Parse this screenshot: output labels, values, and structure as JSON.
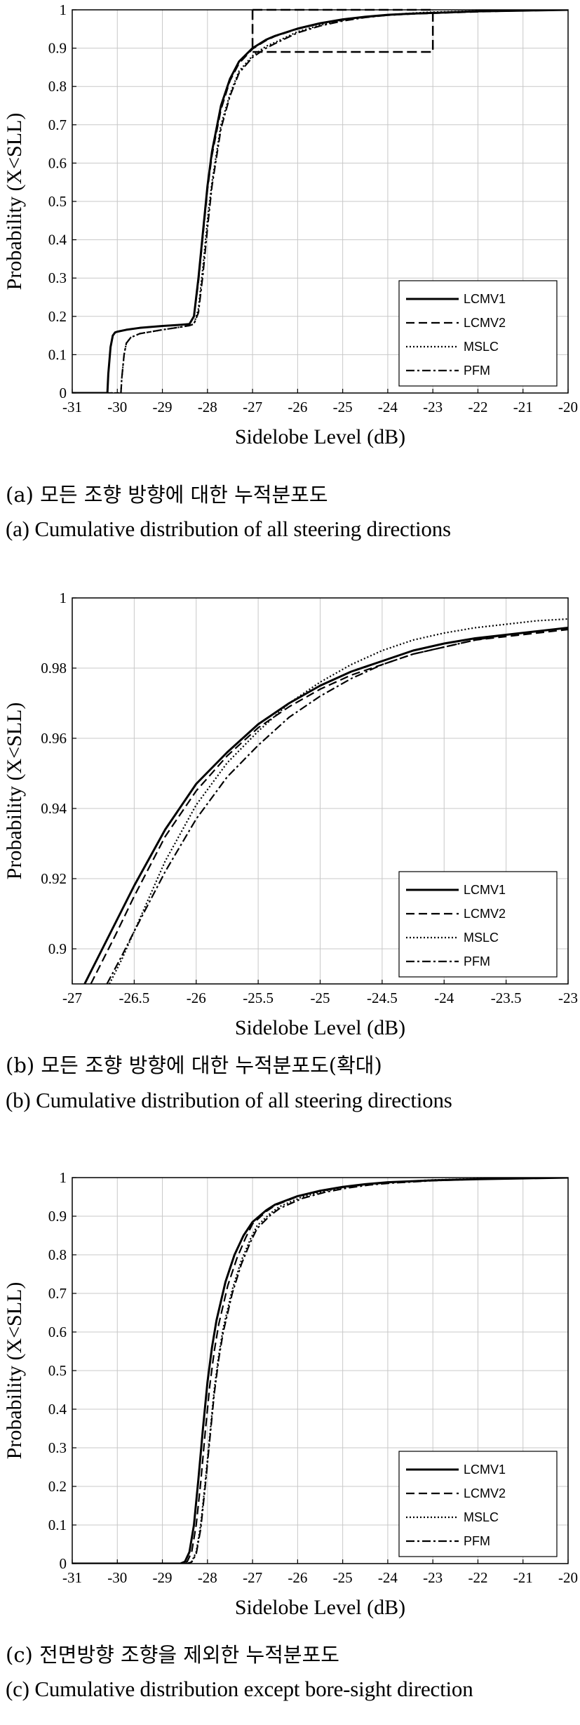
{
  "styles": {
    "LCMV1": {
      "dash": "",
      "width": 3
    },
    "LCMV2": {
      "dash": "12,6",
      "width": 2.2
    },
    "MSLC": {
      "dash": "2,3",
      "width": 2.2
    },
    "PFM": {
      "dash": "12,4,3,4",
      "width": 2.2
    }
  },
  "panels": [
    {
      "id": "a",
      "caption_ko": "(a) 모든 조향 방향에 대한 누적분포도",
      "caption_en": "(a) Cumulative distribution of all steering directions",
      "chart_data": {
        "type": "line",
        "xlabel": "Sidelobe Level (dB)",
        "ylabel": "Probability (X<SLL)",
        "xlim": [
          -31,
          -20
        ],
        "ylim": [
          0,
          1
        ],
        "xticks": [
          -31,
          -30,
          -29,
          -28,
          -27,
          -26,
          -25,
          -24,
          -23,
          -22,
          -21,
          -20
        ],
        "yticks": [
          0,
          0.1,
          0.2,
          0.3,
          0.4,
          0.5,
          0.6,
          0.7,
          0.8,
          0.9,
          1
        ],
        "ytick_labels": [
          "0",
          "0.1",
          "0.2",
          "0.3",
          "0.4",
          "0.5",
          "0.6",
          "0.7",
          "0.8",
          "0.9",
          "1"
        ],
        "grid": true,
        "legend_position": "bottom-right",
        "annotation_box": {
          "x": [
            -27,
            -23
          ],
          "y": [
            0.89,
            1.0
          ]
        },
        "series": [
          {
            "name": "LCMV1",
            "x": [
              -31,
              -30.22,
              -30.2,
              -30.15,
              -30.1,
              -30.05,
              -30.0,
              -29.8,
              -29.5,
              -29.0,
              -28.6,
              -28.4,
              -28.3,
              -28.2,
              -28.1,
              -28.0,
              -27.9,
              -27.7,
              -27.5,
              -27.3,
              -27.0,
              -26.7,
              -26.5,
              -26.0,
              -25.5,
              -25.0,
              -24.5,
              -24.0,
              -23.5,
              -23.0,
              -22.0,
              -21.0,
              -20.0
            ],
            "y": [
              0,
              0,
              0.05,
              0.12,
              0.15,
              0.158,
              0.16,
              0.165,
              0.17,
              0.175,
              0.178,
              0.18,
              0.2,
              0.3,
              0.42,
              0.54,
              0.63,
              0.75,
              0.82,
              0.865,
              0.9,
              0.922,
              0.932,
              0.951,
              0.965,
              0.975,
              0.982,
              0.987,
              0.99,
              0.992,
              0.996,
              0.998,
              1.0
            ]
          },
          {
            "name": "LCMV2",
            "x": [
              -31,
              -30.22,
              -30.2,
              -30.15,
              -30.1,
              -30.05,
              -30.0,
              -29.8,
              -29.5,
              -29.0,
              -28.6,
              -28.4,
              -28.3,
              -28.2,
              -28.1,
              -28.0,
              -27.9,
              -27.7,
              -27.5,
              -27.3,
              -27.0,
              -26.7,
              -26.5,
              -26.0,
              -25.5,
              -25.0,
              -24.5,
              -24.0,
              -23.5,
              -23.0,
              -22.0,
              -21.0,
              -20.0
            ],
            "y": [
              0,
              0,
              0.05,
              0.12,
              0.15,
              0.158,
              0.16,
              0.165,
              0.17,
              0.175,
              0.178,
              0.18,
              0.2,
              0.29,
              0.41,
              0.53,
              0.62,
              0.74,
              0.815,
              0.86,
              0.898,
              0.92,
              0.931,
              0.95,
              0.964,
              0.974,
              0.981,
              0.986,
              0.989,
              0.991,
              0.995,
              0.998,
              1.0
            ]
          },
          {
            "name": "MSLC",
            "x": [
              -31,
              -29.92,
              -29.9,
              -29.85,
              -29.8,
              -29.7,
              -29.6,
              -29.5,
              -29.0,
              -28.6,
              -28.4,
              -28.3,
              -28.2,
              -28.1,
              -28.0,
              -27.9,
              -27.7,
              -27.5,
              -27.3,
              -27.0,
              -26.7,
              -26.5,
              -26.0,
              -25.5,
              -25.0,
              -24.5,
              -24.0,
              -23.5,
              -23.0,
              -22.0,
              -21.0,
              -20.0
            ],
            "y": [
              0,
              0,
              0.04,
              0.1,
              0.13,
              0.145,
              0.15,
              0.155,
              0.165,
              0.172,
              0.176,
              0.18,
              0.22,
              0.33,
              0.45,
              0.55,
              0.7,
              0.78,
              0.84,
              0.88,
              0.905,
              0.915,
              0.943,
              0.96,
              0.973,
              0.981,
              0.987,
              0.991,
              0.994,
              0.997,
              0.999,
              1.0
            ]
          },
          {
            "name": "PFM",
            "x": [
              -31,
              -29.92,
              -29.9,
              -29.85,
              -29.8,
              -29.7,
              -29.6,
              -29.5,
              -29.0,
              -28.6,
              -28.4,
              -28.3,
              -28.2,
              -28.1,
              -28.0,
              -27.9,
              -27.7,
              -27.5,
              -27.3,
              -27.0,
              -26.7,
              -26.5,
              -26.0,
              -25.5,
              -25.0,
              -24.5,
              -24.0,
              -23.5,
              -23.0,
              -22.0,
              -21.0,
              -20.0
            ],
            "y": [
              0,
              0,
              0.04,
              0.1,
              0.13,
              0.145,
              0.15,
              0.155,
              0.165,
              0.172,
              0.176,
              0.18,
              0.21,
              0.31,
              0.43,
              0.54,
              0.69,
              0.775,
              0.835,
              0.876,
              0.9,
              0.912,
              0.94,
              0.958,
              0.971,
              0.98,
              0.986,
              0.99,
              0.992,
              0.996,
              0.998,
              1.0
            ]
          }
        ]
      }
    },
    {
      "id": "b",
      "caption_ko": "(b) 모든 조향 방향에 대한 누적분포도(확대)",
      "caption_en": "(b) Cumulative distribution of all steering directions",
      "chart_data": {
        "type": "line",
        "xlabel": "Sidelobe Level (dB)",
        "ylabel": "Probability (X<SLL)",
        "xlim": [
          -27,
          -23
        ],
        "ylim": [
          0.89,
          1
        ],
        "xticks": [
          -27,
          -26.5,
          -26,
          -25.5,
          -25,
          -24.5,
          -24,
          -23.5,
          -23
        ],
        "yticks": [
          0.9,
          0.92,
          0.94,
          0.96,
          0.98,
          1
        ],
        "ytick_labels": [
          "0.9",
          "0.92",
          "0.94",
          "0.96",
          "0.98",
          "1"
        ],
        "grid": true,
        "legend_position": "bottom-right",
        "series": [
          {
            "name": "LCMV1",
            "x": [
              -26.9,
              -26.8,
              -26.7,
              -26.6,
              -26.5,
              -26.25,
              -26.0,
              -25.75,
              -25.5,
              -25.25,
              -25.0,
              -24.75,
              -24.5,
              -24.25,
              -24.0,
              -23.75,
              -23.5,
              -23.25,
              -23.0
            ],
            "y": [
              0.89,
              0.897,
              0.904,
              0.911,
              0.918,
              0.934,
              0.947,
              0.956,
              0.964,
              0.97,
              0.975,
              0.979,
              0.982,
              0.985,
              0.987,
              0.9885,
              0.9895,
              0.9905,
              0.9915
            ]
          },
          {
            "name": "LCMV2",
            "x": [
              -26.85,
              -26.75,
              -26.65,
              -26.5,
              -26.25,
              -26.0,
              -25.75,
              -25.5,
              -25.25,
              -25.0,
              -24.75,
              -24.5,
              -24.25,
              -24.0,
              -23.75,
              -23.5,
              -23.25,
              -23.0
            ],
            "y": [
              0.89,
              0.897,
              0.904,
              0.915,
              0.932,
              0.945,
              0.955,
              0.963,
              0.969,
              0.974,
              0.978,
              0.981,
              0.984,
              0.986,
              0.988,
              0.989,
              0.99,
              0.991
            ]
          },
          {
            "name": "MSLC",
            "x": [
              -26.7,
              -26.6,
              -26.5,
              -26.25,
              -26.0,
              -25.75,
              -25.5,
              -25.25,
              -25.0,
              -24.75,
              -24.5,
              -24.25,
              -24.0,
              -23.75,
              -23.5,
              -23.25,
              -23.0
            ],
            "y": [
              0.89,
              0.897,
              0.905,
              0.925,
              0.941,
              0.953,
              0.962,
              0.97,
              0.976,
              0.981,
              0.985,
              0.988,
              0.99,
              0.9915,
              0.9925,
              0.9935,
              0.994
            ]
          },
          {
            "name": "PFM",
            "x": [
              -26.72,
              -26.6,
              -26.5,
              -26.25,
              -26.0,
              -25.75,
              -25.5,
              -25.25,
              -25.0,
              -24.75,
              -24.5,
              -24.25,
              -24.0,
              -23.75,
              -23.5,
              -23.25,
              -23.0
            ],
            "y": [
              0.89,
              0.898,
              0.905,
              0.922,
              0.937,
              0.949,
              0.958,
              0.966,
              0.972,
              0.977,
              0.981,
              0.984,
              0.986,
              0.988,
              0.9895,
              0.9905,
              0.9915
            ]
          }
        ]
      }
    },
    {
      "id": "c",
      "caption_ko": "(c) 전면방향 조향을 제외한 누적분포도",
      "caption_en": "(c) Cumulative distribution except bore-sight direction",
      "chart_data": {
        "type": "line",
        "xlabel": "Sidelobe Level (dB)",
        "ylabel": "Probability (X<SLL)",
        "xlim": [
          -31,
          -20
        ],
        "ylim": [
          0,
          1
        ],
        "xticks": [
          -31,
          -30,
          -29,
          -28,
          -27,
          -26,
          -25,
          -24,
          -23,
          -22,
          -21,
          -20
        ],
        "yticks": [
          0,
          0.1,
          0.2,
          0.3,
          0.4,
          0.5,
          0.6,
          0.7,
          0.8,
          0.9,
          1
        ],
        "ytick_labels": [
          "0",
          "0.1",
          "0.2",
          "0.3",
          "0.4",
          "0.5",
          "0.6",
          "0.7",
          "0.8",
          "0.9",
          "1"
        ],
        "grid": true,
        "legend_position": "bottom-right",
        "series": [
          {
            "name": "LCMV1",
            "x": [
              -31,
              -28.6,
              -28.5,
              -28.4,
              -28.3,
              -28.2,
              -28.1,
              -28.0,
              -27.9,
              -27.8,
              -27.6,
              -27.4,
              -27.2,
              -27.0,
              -26.7,
              -26.5,
              -26.0,
              -25.5,
              -25.0,
              -24.5,
              -24.0,
              -23.0,
              -22.0,
              -21.0,
              -20.0
            ],
            "y": [
              0,
              0,
              0.005,
              0.03,
              0.1,
              0.22,
              0.35,
              0.47,
              0.56,
              0.63,
              0.73,
              0.8,
              0.85,
              0.885,
              0.915,
              0.93,
              0.952,
              0.966,
              0.976,
              0.983,
              0.988,
              0.993,
              0.996,
              0.998,
              1.0
            ]
          },
          {
            "name": "LCMV2",
            "x": [
              -31,
              -28.55,
              -28.45,
              -28.35,
              -28.25,
              -28.15,
              -28.05,
              -27.95,
              -27.85,
              -27.75,
              -27.55,
              -27.35,
              -27.15,
              -27.0,
              -26.7,
              -26.5,
              -26.0,
              -25.5,
              -25.0,
              -24.5,
              -24.0,
              -23.0,
              -22.0,
              -21.0,
              -20.0
            ],
            "y": [
              0,
              0,
              0.005,
              0.03,
              0.1,
              0.21,
              0.34,
              0.46,
              0.55,
              0.62,
              0.72,
              0.79,
              0.845,
              0.88,
              0.912,
              0.928,
              0.951,
              0.965,
              0.975,
              0.982,
              0.987,
              0.993,
              0.996,
              0.998,
              1.0
            ]
          },
          {
            "name": "MSLC",
            "x": [
              -31,
              -28.45,
              -28.35,
              -28.25,
              -28.15,
              -28.05,
              -27.95,
              -27.85,
              -27.75,
              -27.65,
              -27.45,
              -27.25,
              -27.05,
              -26.9,
              -26.6,
              -26.4,
              -25.9,
              -25.4,
              -24.9,
              -24.4,
              -23.9,
              -23.0,
              -22.0,
              -21.0,
              -20.0
            ],
            "y": [
              0,
              0,
              0.005,
              0.03,
              0.1,
              0.21,
              0.33,
              0.45,
              0.54,
              0.61,
              0.71,
              0.785,
              0.84,
              0.875,
              0.908,
              0.925,
              0.95,
              0.965,
              0.976,
              0.983,
              0.988,
              0.994,
              0.997,
              0.999,
              1.0
            ]
          },
          {
            "name": "PFM",
            "x": [
              -31,
              -28.45,
              -28.35,
              -28.25,
              -28.15,
              -28.05,
              -27.95,
              -27.85,
              -27.75,
              -27.65,
              -27.45,
              -27.25,
              -27.05,
              -26.9,
              -26.6,
              -26.4,
              -25.9,
              -25.4,
              -24.9,
              -24.4,
              -23.9,
              -23.0,
              -22.0,
              -21.0,
              -20.0
            ],
            "y": [
              0,
              0,
              0.004,
              0.025,
              0.09,
              0.2,
              0.32,
              0.44,
              0.53,
              0.6,
              0.7,
              0.775,
              0.832,
              0.868,
              0.903,
              0.92,
              0.946,
              0.962,
              0.973,
              0.981,
              0.986,
              0.992,
              0.996,
              0.998,
              1.0
            ]
          }
        ]
      }
    }
  ]
}
